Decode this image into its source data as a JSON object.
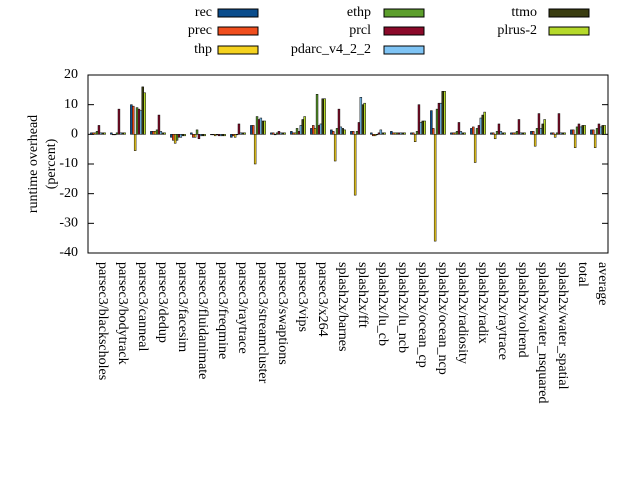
{
  "chart_data": {
    "type": "bar",
    "y_label": [
      "runtime overhead",
      "(percent)"
    ],
    "categories": [
      "parsec3/blackscholes",
      "parsec3/bodytrack",
      "parsec3/canneal",
      "parsec3/dedup",
      "parsec3/facesim",
      "parsec3/fluidanimate",
      "parsec3/freqmine",
      "parsec3/raytrace",
      "parsec3/streamcluster",
      "parsec3/swaptions",
      "parsec3/vips",
      "parsec3/x264",
      "splash2x/barnes",
      "splash2x/fft",
      "splash2x/lu_cb",
      "splash2x/lu_ncb",
      "splash2x/ocean_cp",
      "splash2x/ocean_ncp",
      "splash2x/radiosity",
      "splash2x/radix",
      "splash2x/raytrace",
      "splash2x/volrend",
      "splash2x/water_nsquared",
      "splash2x/water_spatial",
      "total",
      "average"
    ],
    "series": [
      {
        "name": "rec",
        "color": "#0b4d8c",
        "values": [
          0.5,
          0.5,
          10,
          1,
          -1,
          0.5,
          0,
          -1,
          3,
          0.5,
          1,
          2,
          1.5,
          1,
          0.5,
          1,
          0.5,
          8,
          0.5,
          2,
          0.5,
          0.5,
          1,
          0.5,
          1.5,
          1.5
        ]
      },
      {
        "name": "prec",
        "color": "#f04e1e",
        "values": [
          0.5,
          0,
          9.5,
          1,
          -2,
          -1,
          0,
          -0.5,
          3,
          0.5,
          0.5,
          3,
          1,
          1,
          -0.5,
          0.5,
          0.5,
          2,
          0.5,
          2.5,
          0.5,
          0.5,
          1,
          0.5,
          1.5,
          1.5
        ]
      },
      {
        "name": "thp",
        "color": "#f5d21f",
        "values": [
          0.5,
          0,
          -5.5,
          1,
          -3,
          -1,
          -0.5,
          -1,
          -10,
          0,
          0.5,
          2,
          -9,
          -20.5,
          -0.5,
          0.5,
          -2.5,
          -36,
          0.5,
          -9.5,
          -1.5,
          0.5,
          -4,
          -1,
          -4.5,
          -4.5
        ]
      },
      {
        "name": "ethp",
        "color": "#5c9e2c",
        "values": [
          1,
          0.5,
          9,
          1.5,
          -2,
          1.5,
          0,
          0,
          6,
          0.5,
          2,
          13.5,
          2,
          1,
          0,
          0.5,
          1,
          8.5,
          1,
          2,
          1,
          1,
          2,
          0.5,
          2.5,
          2
        ]
      },
      {
        "name": "prcl",
        "color": "#8b0a2a",
        "values": [
          3,
          8.5,
          8.5,
          6.5,
          -1,
          -1.5,
          -0.5,
          3.5,
          5,
          1,
          1,
          3,
          8.5,
          4,
          0.5,
          0.5,
          10,
          10.5,
          4,
          3,
          3.5,
          5,
          7,
          7,
          3.5,
          3.5
        ]
      },
      {
        "name": "pdarc_v4_2_2",
        "color": "#7fc4f5",
        "values": [
          0.5,
          0.5,
          8,
          1,
          -1,
          -0.5,
          -0.5,
          0.5,
          5.5,
          0.5,
          3,
          3.5,
          2.5,
          12.5,
          1.5,
          0.5,
          4,
          10.5,
          1,
          5.5,
          1,
          0.5,
          2,
          0.5,
          2.5,
          2.5
        ]
      },
      {
        "name": "ttmo",
        "color": "#3a3d10",
        "values": [
          0.5,
          0.5,
          16,
          0.5,
          -0.5,
          -0.5,
          -0.5,
          0.5,
          4.5,
          0.5,
          5,
          12,
          2,
          10,
          0.5,
          0.5,
          4.5,
          14.5,
          0.5,
          6.5,
          0.5,
          0.5,
          3.5,
          0.5,
          3,
          3
        ]
      },
      {
        "name": "plrus-2",
        "color": "#b5d92a",
        "values": [
          0.5,
          0.5,
          14,
          0.5,
          -0.5,
          -0.5,
          -0.5,
          0.5,
          4.5,
          0.5,
          6,
          12,
          1.5,
          10.5,
          0.5,
          0.5,
          4.5,
          14.5,
          0.5,
          7.5,
          0.5,
          0.5,
          5,
          0.5,
          3,
          3
        ]
      }
    ],
    "ylim": [
      -40,
      20
    ],
    "yticks": [
      -40,
      -30,
      -20,
      -10,
      0,
      10,
      20
    ]
  }
}
